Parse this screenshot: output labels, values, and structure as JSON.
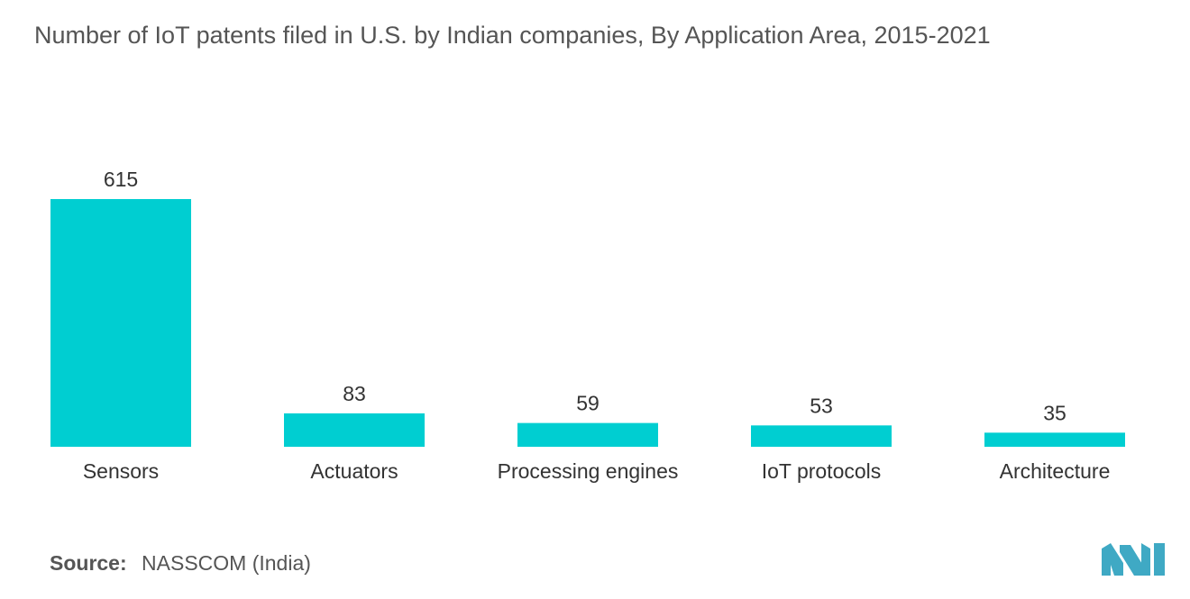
{
  "title": "Number of IoT patents filed in U.S. by Indian companies, By Application Area, 2015-2021",
  "source": {
    "label": "Source:",
    "text": "NASSCOM (India)"
  },
  "colors": {
    "bar": "#00CED1",
    "logo": "#3FA9C4"
  },
  "logo_icon": "mordor-intelligence-logo-icon",
  "chart_data": {
    "type": "bar",
    "categories": [
      "Sensors",
      "Actuators",
      "Processing engines",
      "IoT protocols",
      "Architecture"
    ],
    "values": [
      615,
      83,
      59,
      53,
      35
    ],
    "title": "Number of IoT patents filed in U.S. by Indian companies, By Application Area, 2015-2021",
    "xlabel": "",
    "ylabel": "",
    "ylim": [
      0,
      615
    ],
    "grid": false,
    "legend": "none"
  }
}
